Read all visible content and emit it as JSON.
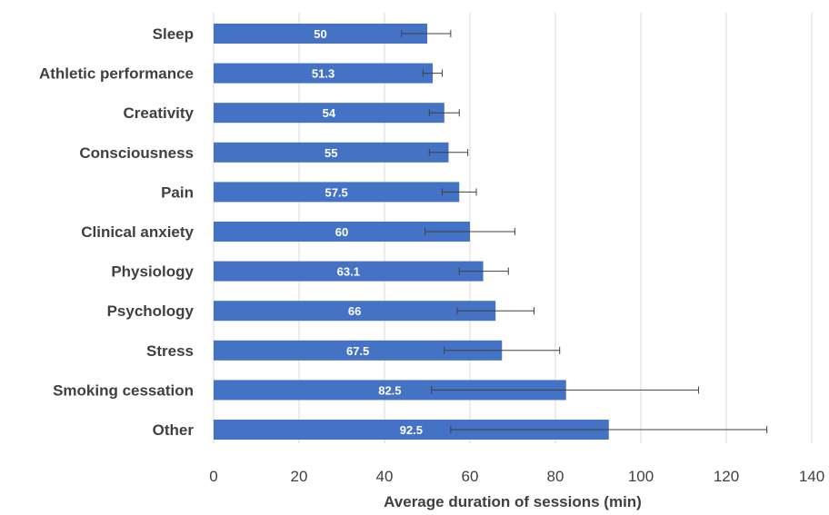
{
  "chart_data": {
    "type": "bar",
    "orientation": "horizontal",
    "categories": [
      "Sleep",
      "Athletic performance",
      "Creativity",
      "Consciousness",
      "Pain",
      "Clinical anxiety",
      "Physiology",
      "Psychology",
      "Stress",
      "Smoking cessation",
      "Other"
    ],
    "values": [
      50,
      51.3,
      54,
      55,
      57.5,
      60,
      63.1,
      66,
      67.5,
      82.5,
      92.5
    ],
    "data_labels": [
      "50",
      "51.3",
      "54",
      "55",
      "57.5",
      "60",
      "63.1",
      "66",
      "67.5",
      "82.5",
      "92.5"
    ],
    "error_low": [
      44,
      49,
      50.5,
      50.5,
      53.5,
      49.5,
      57.5,
      57,
      54,
      51,
      55.5
    ],
    "error_high": [
      55.5,
      53.5,
      57.5,
      59.5,
      61.5,
      70.5,
      69,
      75,
      81,
      113.5,
      129.5
    ],
    "xlabel": "Average duration of sessions (min)",
    "ylabel": "",
    "title": "",
    "xlim": [
      0,
      140
    ],
    "x_ticks": [
      0,
      20,
      40,
      60,
      80,
      100,
      120,
      140
    ],
    "x_tick_labels": [
      "0",
      "20",
      "40",
      "60",
      "80",
      "100",
      "120",
      "140"
    ],
    "grid": "vertical",
    "bar_color": "#4472C4",
    "text_color": "#404040",
    "grid_color": "#d9d9d9"
  }
}
